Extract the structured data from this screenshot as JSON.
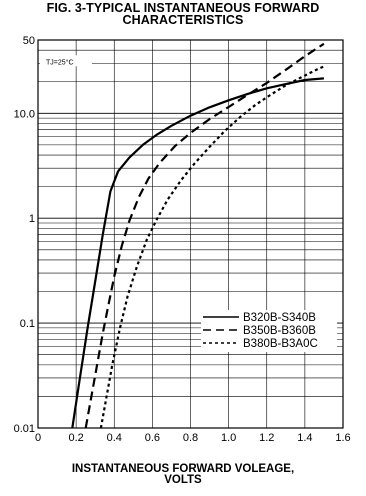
{
  "chart_data": {
    "type": "line",
    "title": "FIG. 3-TYPICAL INSTANTANEOUS FORWARD",
    "subtitle": "CHARACTERISTICS",
    "xlabel": "INSTANTANEOUS FORWARD VOLEAGE,",
    "xlabel_units": "VOLTS",
    "ylabel": "",
    "yscale": "log",
    "xlim": [
      0,
      1.6
    ],
    "ylim": [
      0.01,
      50
    ],
    "grid": true,
    "legend_position": "bottom-right",
    "annotation": "TJ=25°C",
    "x_ticks": [
      "0",
      "0.2",
      "0.4",
      "0.6",
      "0.8",
      "1.0",
      "1.2",
      "1.4",
      "1.6"
    ],
    "x_tick_values": [
      0,
      0.2,
      0.4,
      0.6,
      0.8,
      1.0,
      1.2,
      1.4,
      1.6
    ],
    "y_ticks": [
      "0.01",
      "0.1",
      "1",
      "10.0",
      "50"
    ],
    "y_tick_values": [
      0.01,
      0.1,
      1,
      10,
      50
    ],
    "series": [
      {
        "name": "B320B-S340B",
        "dash": "solid",
        "x": [
          0.18,
          0.22,
          0.26,
          0.3,
          0.34,
          0.38,
          0.42,
          0.48,
          0.55,
          0.62,
          0.7,
          0.8,
          0.9,
          1.0,
          1.1,
          1.2,
          1.3,
          1.4,
          1.5
        ],
        "y": [
          0.01,
          0.03,
          0.09,
          0.25,
          0.7,
          1.8,
          2.8,
          3.8,
          5.0,
          6.2,
          7.6,
          9.5,
          11.4,
          13.3,
          15.3,
          17.3,
          19.0,
          20.8,
          21.5
        ]
      },
      {
        "name": "B350B-B360B",
        "dash": "dashed",
        "x": [
          0.25,
          0.28,
          0.31,
          0.34,
          0.37,
          0.4,
          0.44,
          0.48,
          0.53,
          0.58,
          0.64,
          0.72,
          0.8,
          0.9,
          1.0,
          1.1,
          1.2,
          1.3,
          1.4,
          1.5
        ],
        "y": [
          0.01,
          0.02,
          0.04,
          0.08,
          0.15,
          0.28,
          0.55,
          0.95,
          1.6,
          2.4,
          3.4,
          4.9,
          6.5,
          8.8,
          11.5,
          15.0,
          19.5,
          26.0,
          35.0,
          46.0
        ]
      },
      {
        "name": "B380B-B3A0C",
        "dash": "dotted",
        "x": [
          0.33,
          0.36,
          0.39,
          0.43,
          0.47,
          0.52,
          0.57,
          0.62,
          0.68,
          0.75,
          0.82,
          0.9,
          0.98,
          1.06,
          1.14,
          1.22,
          1.3,
          1.38,
          1.46,
          1.5
        ],
        "y": [
          0.01,
          0.02,
          0.04,
          0.09,
          0.18,
          0.35,
          0.62,
          0.95,
          1.5,
          2.3,
          3.3,
          4.8,
          6.8,
          9.2,
          12.0,
          15.0,
          18.5,
          22.0,
          26.0,
          28.0
        ]
      }
    ]
  }
}
